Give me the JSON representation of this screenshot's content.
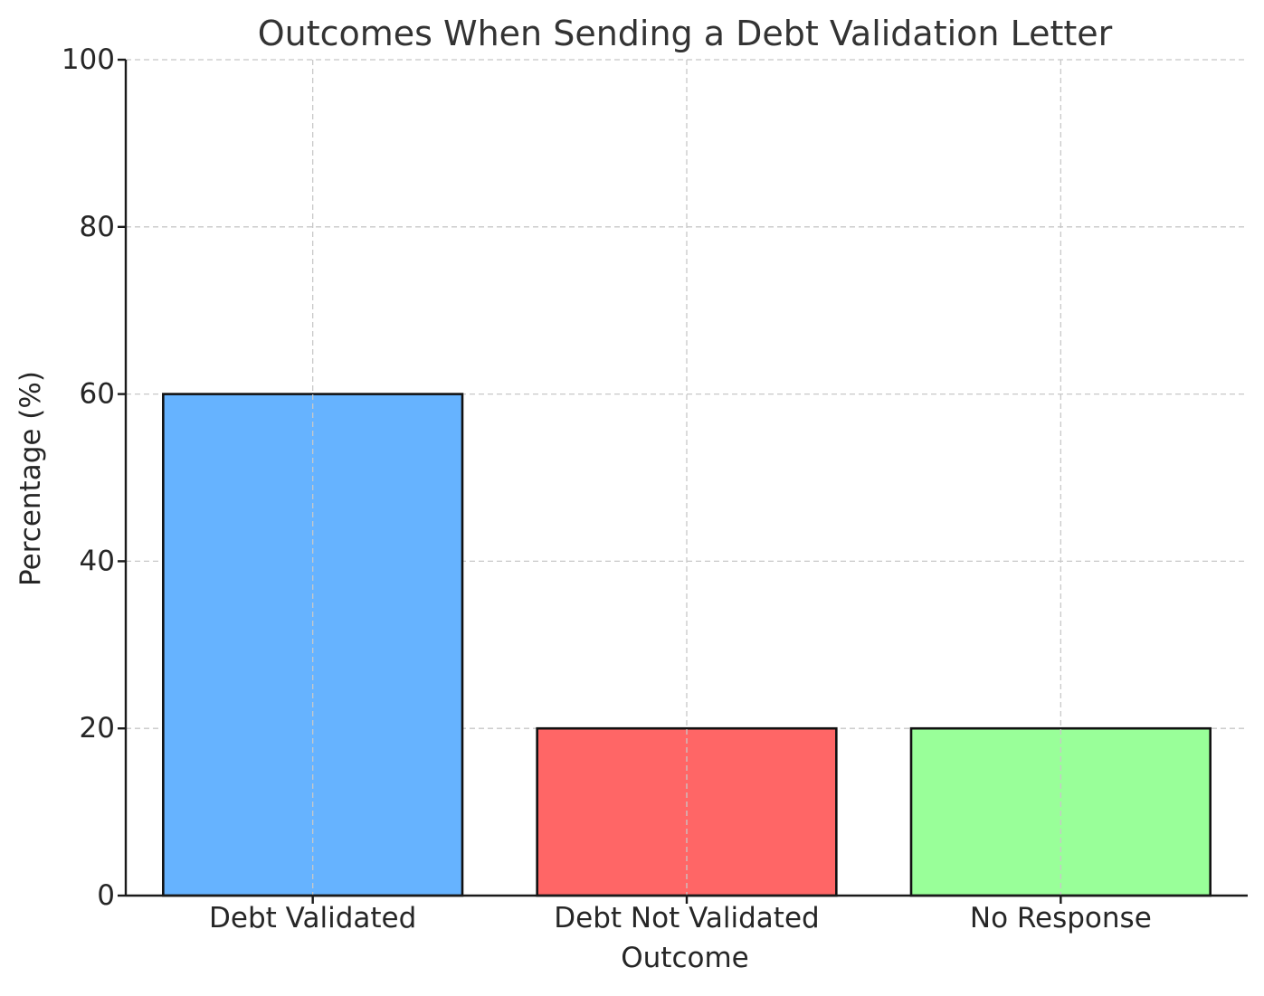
{
  "chart_data": {
    "type": "bar",
    "title": "Outcomes When Sending a Debt Validation Letter",
    "xlabel": "Outcome",
    "ylabel": "Percentage (%)",
    "categories": [
      "Debt Validated",
      "Debt Not Validated",
      "No Response"
    ],
    "values": [
      60,
      20,
      20
    ],
    "colors": [
      "#66b3ff",
      "#ff6666",
      "#99ff99"
    ],
    "ylim": [
      0,
      100
    ],
    "yticks": [
      0,
      20,
      40,
      60,
      80,
      100
    ],
    "grid": true,
    "legend": "none"
  }
}
